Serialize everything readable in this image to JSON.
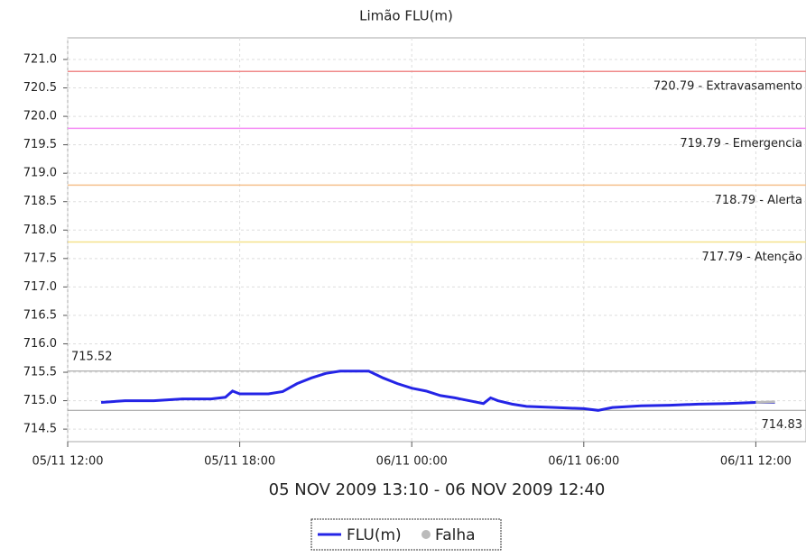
{
  "chart_data": {
    "type": "line",
    "title": "Limão FLU(m)",
    "subtitle": "05 NOV 2009 13:10 - 06 NOV 2009 12:40",
    "x": [
      "2009-11-05T13:10",
      "2009-11-05T14:00",
      "2009-11-05T15:00",
      "2009-11-05T16:00",
      "2009-11-05T17:00",
      "2009-11-05T17:30",
      "2009-11-05T17:45",
      "2009-11-05T18:00",
      "2009-11-05T19:00",
      "2009-11-05T19:30",
      "2009-11-05T20:00",
      "2009-11-05T20:30",
      "2009-11-05T21:00",
      "2009-11-05T21:30",
      "2009-11-05T22:00",
      "2009-11-05T22:30",
      "2009-11-05T23:00",
      "2009-11-05T23:30",
      "2009-11-06T00:00",
      "2009-11-06T00:30",
      "2009-11-06T01:00",
      "2009-11-06T01:30",
      "2009-11-06T02:00",
      "2009-11-06T02:30",
      "2009-11-06T02:45",
      "2009-11-06T03:00",
      "2009-11-06T03:30",
      "2009-11-06T04:00",
      "2009-11-06T05:00",
      "2009-11-06T06:00",
      "2009-11-06T06:30",
      "2009-11-06T07:00",
      "2009-11-06T08:00",
      "2009-11-06T09:00",
      "2009-11-06T10:00",
      "2009-11-06T11:00",
      "2009-11-06T12:00",
      "2009-11-06T12:40"
    ],
    "series": [
      {
        "name": "FLU(m)",
        "color": "#2424e6",
        "values": [
          714.97,
          715.0,
          715.0,
          715.03,
          715.03,
          715.06,
          715.17,
          715.12,
          715.12,
          715.16,
          715.3,
          715.4,
          715.48,
          715.52,
          715.52,
          715.52,
          715.4,
          715.3,
          715.22,
          715.17,
          715.09,
          715.05,
          715.0,
          714.95,
          715.05,
          715.0,
          714.94,
          714.9,
          714.88,
          714.86,
          714.83,
          714.88,
          714.91,
          714.92,
          714.94,
          714.95,
          714.97,
          714.97
        ]
      },
      {
        "name": "Falha",
        "color": "#bbbbbb",
        "values": [
          null,
          null,
          null,
          null,
          null,
          null,
          null,
          null,
          null,
          null,
          null,
          null,
          null,
          null,
          null,
          null,
          null,
          null,
          null,
          null,
          null,
          null,
          null,
          null,
          null,
          null,
          null,
          null,
          null,
          null,
          null,
          null,
          null,
          null,
          null,
          null,
          714.97,
          714.98
        ]
      }
    ],
    "xlim": [
      "2009-11-05T12:00",
      "2009-11-06T13:45"
    ],
    "xticks": [
      {
        "value": "2009-11-05T12:00",
        "label": "05/11 12:00"
      },
      {
        "value": "2009-11-05T18:00",
        "label": "05/11 18:00"
      },
      {
        "value": "2009-11-06T00:00",
        "label": "06/11 00:00"
      },
      {
        "value": "2009-11-06T06:00",
        "label": "06/11 06:00"
      },
      {
        "value": "2009-11-06T12:00",
        "label": "06/11 12:00"
      }
    ],
    "ylim": [
      714.28,
      721.38
    ],
    "yticks": [
      {
        "value": 714.5,
        "label": "714.5"
      },
      {
        "value": 715,
        "label": "715.0"
      },
      {
        "value": 715.5,
        "label": "715.5"
      },
      {
        "value": 716,
        "label": "716.0"
      },
      {
        "value": 716.5,
        "label": "716.5"
      },
      {
        "value": 717,
        "label": "717.0"
      },
      {
        "value": 717.5,
        "label": "717.5"
      },
      {
        "value": 718,
        "label": "718.0"
      },
      {
        "value": 718.5,
        "label": "718.5"
      },
      {
        "value": 719,
        "label": "719.0"
      },
      {
        "value": 719.5,
        "label": "719.5"
      },
      {
        "value": 720,
        "label": "720.0"
      },
      {
        "value": 720.5,
        "label": "720.5"
      },
      {
        "value": 721,
        "label": "721.0"
      }
    ],
    "thresholds": [
      {
        "value": 720.79,
        "label": "720.79 - Extravasamento",
        "color": "#f08a8a"
      },
      {
        "value": 719.79,
        "label": "719.79 - Emergencia",
        "color": "#f58cf5"
      },
      {
        "value": 718.79,
        "label": "718.79 - Alerta",
        "color": "#f5c08c"
      },
      {
        "value": 717.79,
        "label": "717.79 - Atenção",
        "color": "#f5e28c"
      }
    ],
    "max_line": 715.52,
    "min_line": 714.83,
    "grid": true
  }
}
